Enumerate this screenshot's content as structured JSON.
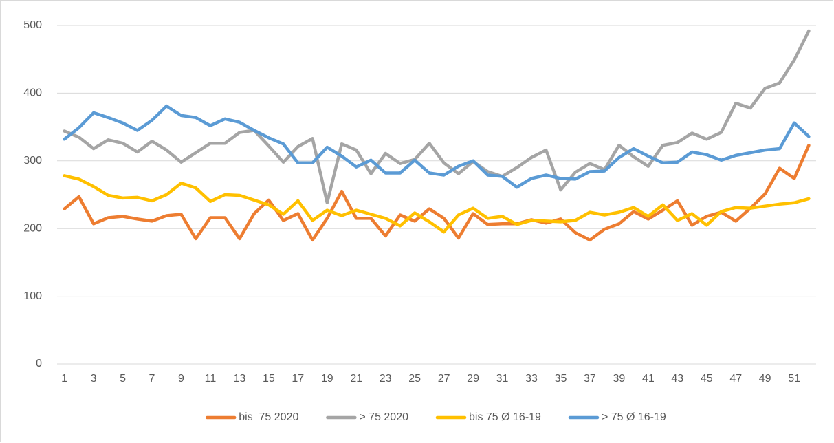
{
  "chart_data": {
    "type": "line",
    "categories": [
      1,
      null,
      3,
      null,
      5,
      null,
      7,
      null,
      9,
      null,
      11,
      null,
      13,
      null,
      15,
      null,
      17,
      null,
      19,
      null,
      21,
      null,
      23,
      null,
      25,
      null,
      27,
      null,
      29,
      null,
      31,
      null,
      33,
      null,
      35,
      null,
      37,
      null,
      39,
      null,
      41,
      null,
      43,
      null,
      45,
      null,
      47,
      null,
      49,
      null,
      51,
      null
    ],
    "series": [
      {
        "name": "bis  75 2020",
        "color": "#ed7d31",
        "values": [
          229,
          247,
          207,
          216,
          218,
          214,
          211,
          219,
          221,
          185,
          216,
          216,
          185,
          222,
          242,
          212,
          222,
          183,
          215,
          255,
          215,
          215,
          189,
          220,
          211,
          229,
          215,
          186,
          222,
          206,
          207,
          207,
          213,
          208,
          214,
          194,
          183,
          199,
          207,
          225,
          214,
          227,
          241,
          205,
          218,
          224,
          211,
          230,
          251,
          289,
          274,
          323
        ]
      },
      {
        "name": "> 75 2020",
        "color": "#a5a5a5",
        "values": [
          344,
          335,
          318,
          331,
          326,
          313,
          329,
          316,
          298,
          312,
          326,
          326,
          342,
          345,
          322,
          298,
          321,
          333,
          238,
          325,
          316,
          281,
          311,
          296,
          302,
          326,
          297,
          281,
          299,
          284,
          277,
          290,
          305,
          316,
          257,
          283,
          296,
          287,
          323,
          306,
          292,
          323,
          327,
          341,
          332,
          342,
          385,
          378,
          407,
          415,
          449,
          492
        ]
      },
      {
        "name": "bis 75 Ø 16-19",
        "color": "#ffc000",
        "values": [
          278,
          273,
          262,
          249,
          245,
          246,
          241,
          250,
          267,
          260,
          240,
          250,
          249,
          242,
          235,
          221,
          241,
          212,
          227,
          219,
          227,
          221,
          215,
          204,
          223,
          210,
          195,
          220,
          230,
          215,
          218,
          206,
          212,
          211,
          210,
          212,
          224,
          220,
          224,
          231,
          218,
          235,
          212,
          222,
          205,
          225,
          231,
          230,
          233,
          236,
          238,
          244
        ]
      },
      {
        "name": "> 75 Ø 16-19",
        "color": "#5b9bd5",
        "values": [
          332,
          349,
          371,
          364,
          356,
          345,
          360,
          381,
          367,
          364,
          352,
          362,
          357,
          345,
          334,
          325,
          297,
          297,
          320,
          307,
          291,
          301,
          282,
          282,
          301,
          282,
          279,
          292,
          300,
          279,
          277,
          261,
          274,
          279,
          274,
          273,
          284,
          285,
          305,
          318,
          307,
          297,
          298,
          313,
          309,
          301,
          308,
          312,
          316,
          318,
          356,
          336
        ]
      }
    ],
    "ylim": [
      0,
      500
    ],
    "yticks": [
      0,
      100,
      200,
      300,
      400,
      500
    ],
    "grid": true,
    "legend": "bottom"
  }
}
